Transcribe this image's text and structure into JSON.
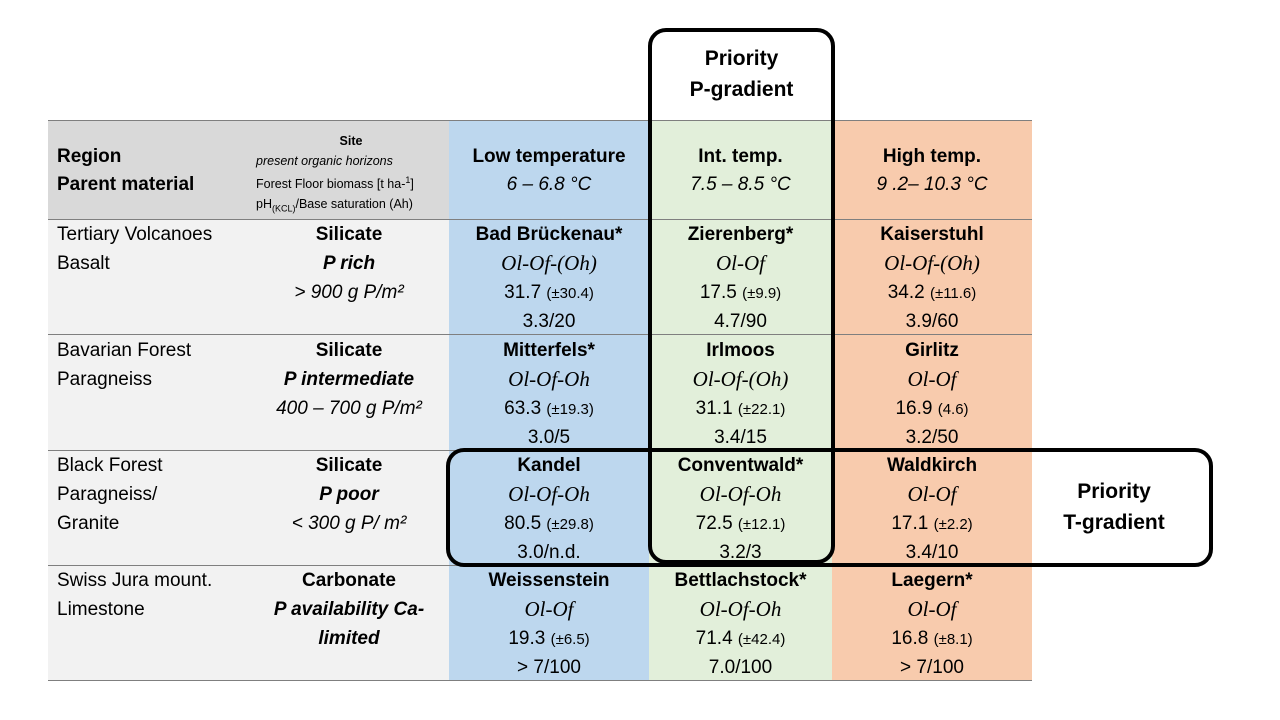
{
  "priority_p": {
    "line1": "Priority",
    "line2": "P-gradient"
  },
  "priority_t": {
    "line1": "Priority",
    "line2": "T-gradient"
  },
  "header": {
    "region_line1": "Region",
    "region_line2": "Parent material",
    "site_title": "Site",
    "site_line2": "present organic horizons",
    "site_line3_a": "Forest Floor biomass [t ha-",
    "site_line3_sup": "1",
    "site_line3_b": "]",
    "site_line4_a": "pH",
    "site_line4_sub": "(KCL)",
    "site_line4_b": "/Base saturation (Ah)",
    "low_title": "Low temperature",
    "low_range": "6 – 6.8 °C",
    "int_title": "Int. temp.",
    "int_range": "7.5 – 8.5 °C",
    "high_title": "High temp.",
    "high_range": "9 .2– 10.3 °C"
  },
  "rows": [
    {
      "region": [
        "Tertiary Volcanoes",
        "Basalt"
      ],
      "site": [
        "Silicate",
        "P rich",
        "> 900 g P/m²"
      ],
      "low": {
        "name": "Bad Brückenau*",
        "horizons": "Ol-Of-(Oh)",
        "biomass": "31.7",
        "sd": "(±30.4)",
        "ph": "3.3/20"
      },
      "int": {
        "name": "Zierenberg*",
        "horizons": "Ol-Of",
        "biomass": "17.5",
        "sd": "(±9.9)",
        "ph": "4.7/90"
      },
      "high": {
        "name": "Kaiserstuhl",
        "horizons": "Ol-Of-(Oh)",
        "biomass": "34.2",
        "sd": "(±11.6)",
        "ph": "3.9/60"
      }
    },
    {
      "region": [
        "Bavarian Forest",
        "Paragneiss"
      ],
      "site": [
        "Silicate",
        "P intermediate",
        "400 – 700 g P/m²"
      ],
      "low": {
        "name": "Mitterfels*",
        "horizons": "Ol-Of-Oh",
        "biomass": "63.3",
        "sd": "(±19.3)",
        "ph": "3.0/5"
      },
      "int": {
        "name": "Irlmoos",
        "horizons": "Ol-Of-(Oh)",
        "biomass": "31.1",
        "sd": "(±22.1)",
        "ph": "3.4/15"
      },
      "high": {
        "name": "Girlitz",
        "horizons": "Ol-Of",
        "biomass": "16.9",
        "sd": "(4.6)",
        "ph": "3.2/50"
      }
    },
    {
      "region": [
        "Black Forest",
        "Paragneiss/",
        "Granite"
      ],
      "site": [
        "Silicate",
        "P poor",
        "< 300 g P/ m²"
      ],
      "low": {
        "name": "Kandel",
        "horizons": "Ol-Of-Oh",
        "biomass": "80.5",
        "sd": "(±29.8)",
        "ph": "3.0/n.d."
      },
      "int": {
        "name": "Conventwald*",
        "horizons": "Ol-Of-Oh",
        "biomass": "72.5",
        "sd": "(±12.1)",
        "ph": "3.2/3"
      },
      "high": {
        "name": "Waldkirch",
        "horizons": "Ol-Of",
        "biomass": "17.1",
        "sd": "(±2.2)",
        "ph": "3.4/10"
      }
    },
    {
      "region": [
        "Swiss Jura mount.",
        "Limestone"
      ],
      "site": [
        "Carbonate",
        "P availability Ca-",
        "limited"
      ],
      "low": {
        "name": "Weissenstein",
        "horizons": "Ol-Of",
        "biomass": "19.3",
        "sd": "(±6.5)",
        "ph": "> 7/100"
      },
      "int": {
        "name": "Bettlachstock*",
        "horizons": "Ol-Of-Oh",
        "biomass": "71.4",
        "sd": "(±42.4)",
        "ph": "7.0/100"
      },
      "high": {
        "name": "Laegern*",
        "horizons": "Ol-Of",
        "biomass": "16.8",
        "sd": "(±8.1)",
        "ph": "> 7/100"
      }
    }
  ]
}
